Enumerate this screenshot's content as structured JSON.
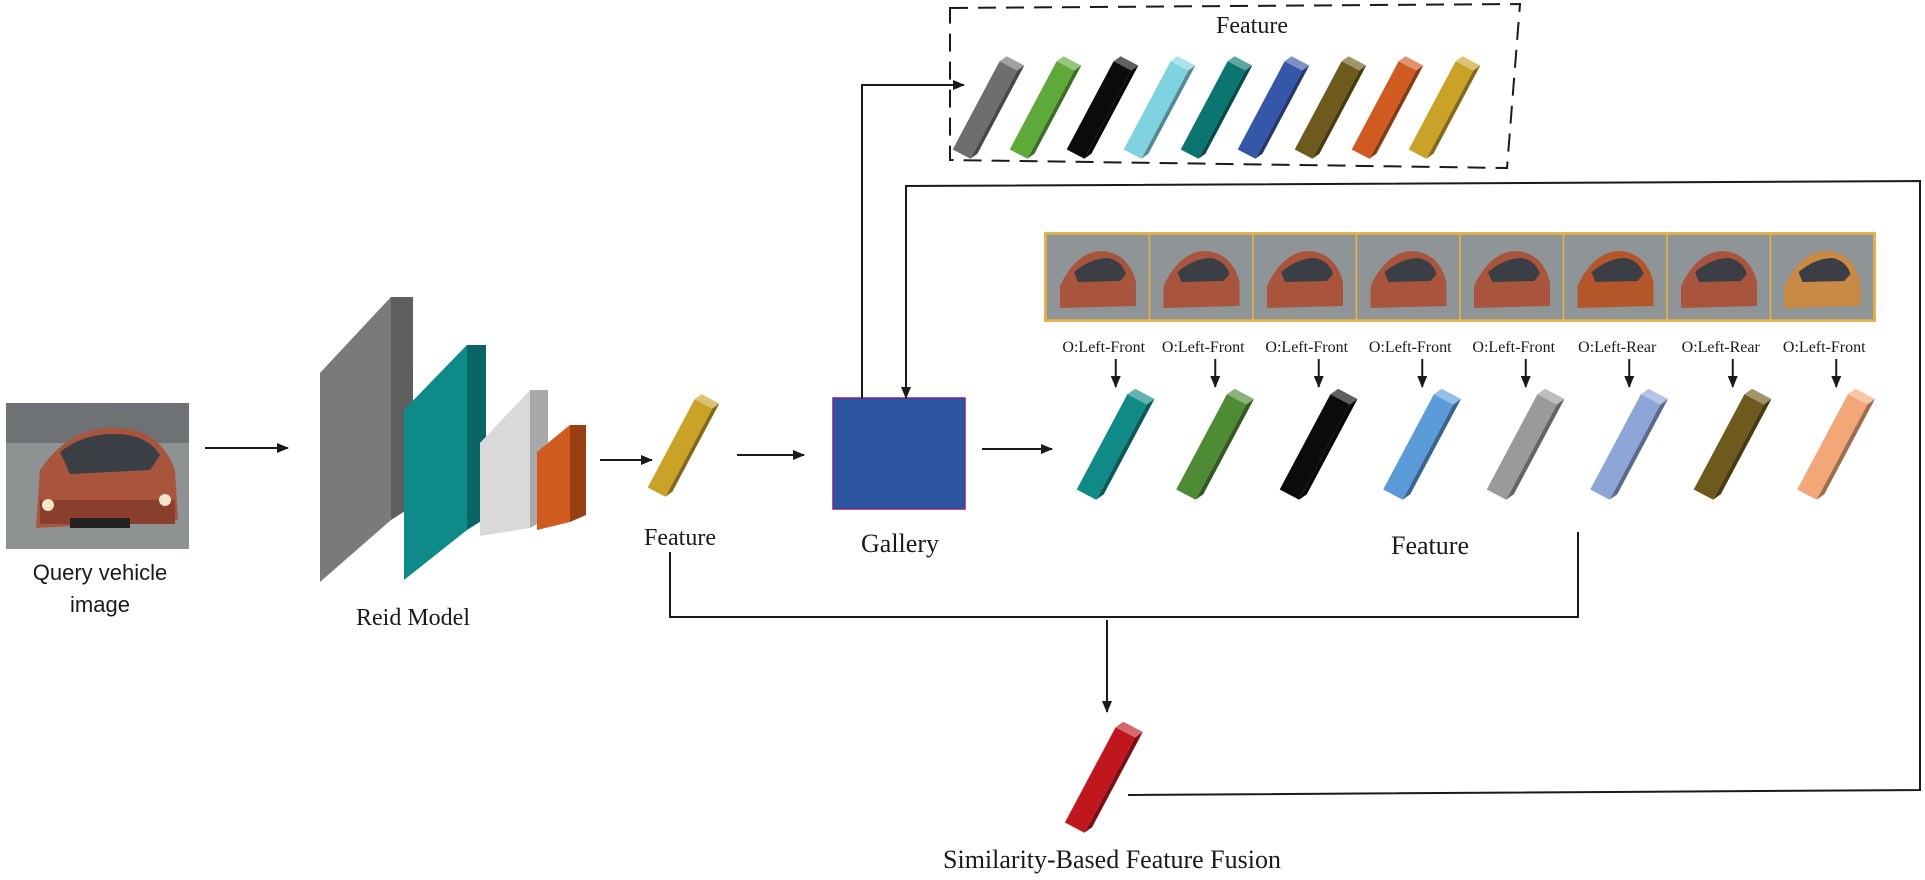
{
  "labels": {
    "query_image": [
      "Query vehicle",
      "image"
    ],
    "reid_model": "Reid Model",
    "feature_query": "Feature",
    "gallery": "Gallery",
    "feature_gallery": "Feature",
    "feature_top": "Feature",
    "fusion": "Similarity-Based Feature Fusion"
  },
  "colors": {
    "gallery_box": "#2c55a0",
    "gallery_border": "#7a2a8a",
    "query_feature": "#c9a227",
    "fusion_feature": "#c0171f",
    "photo_border": "#e8b24a",
    "reid_layers": [
      "#7a7a7a",
      "#0e8a89",
      "#d9d9d9",
      "#d05b20"
    ]
  },
  "top_features": [
    "#6e6e6e",
    "#5fa83a",
    "#0b0b0b",
    "#7fd3e0",
    "#0c7571",
    "#3656a8",
    "#6e5a1c",
    "#d05b20",
    "#c9a227"
  ],
  "gallery_items": [
    {
      "orientation": "O:Left-Front",
      "feature_color": "#0f8a86",
      "car_color": "#a9553e"
    },
    {
      "orientation": "O:Left-Front",
      "feature_color": "#4f8a35",
      "car_color": "#a9553e"
    },
    {
      "orientation": "O:Left-Front",
      "feature_color": "#0b0b0b",
      "car_color": "#a9553e"
    },
    {
      "orientation": "O:Left-Front",
      "feature_color": "#5a9bd8",
      "car_color": "#a9553e"
    },
    {
      "orientation": "O:Left-Front",
      "feature_color": "#9a9a9a",
      "car_color": "#a9553e"
    },
    {
      "orientation": "O:Left-Rear",
      "feature_color": "#8ea5d8",
      "car_color": "#b5562a"
    },
    {
      "orientation": "O:Left-Rear",
      "feature_color": "#6e5a1c",
      "car_color": "#a9553e"
    },
    {
      "orientation": "O:Left-Front",
      "feature_color": "#f2a778",
      "car_color": "#c98a45"
    }
  ]
}
